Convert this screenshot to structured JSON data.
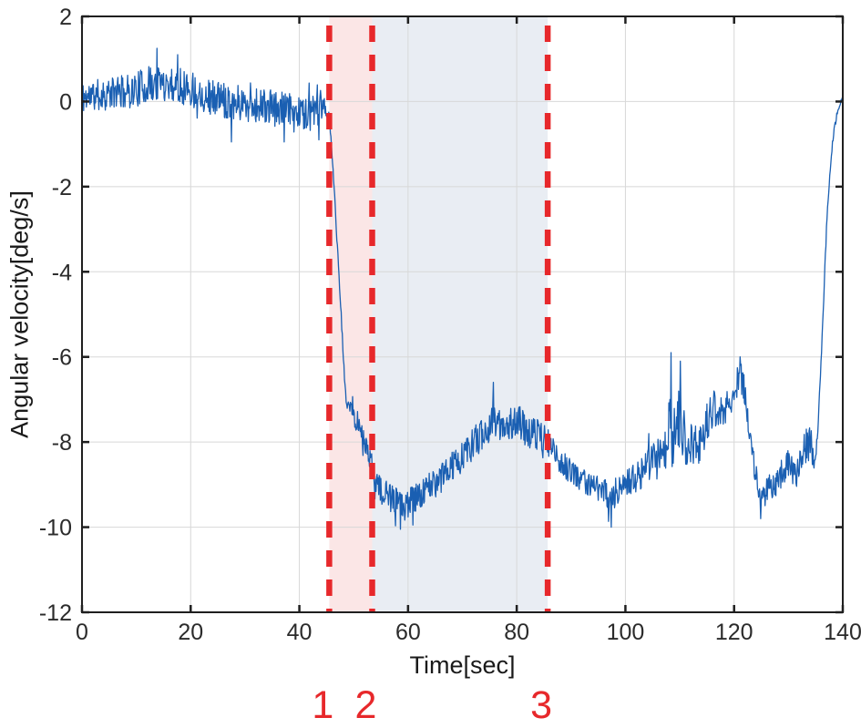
{
  "chart_data": {
    "type": "line",
    "title": "",
    "xlabel": "Time[sec]",
    "ylabel": "Angular velocity[deg/s]",
    "xlim": [
      0,
      140
    ],
    "ylim": [
      -12,
      2
    ],
    "xticks": [
      0,
      20,
      40,
      60,
      80,
      100,
      120,
      140
    ],
    "yticks": [
      2,
      0,
      -2,
      -4,
      -6,
      -8,
      -10,
      -12
    ],
    "grid": true,
    "legend": false,
    "colors": {
      "line": "#1a5fb2",
      "marker_red": "#e7282b",
      "region_pink": "#fbe6e6",
      "region_bluegray": "#e9edf3",
      "grid": "#d8d8d8",
      "axis": "#1f1f1f",
      "background": "#ffffff"
    },
    "series": [
      {
        "name": "angular velocity",
        "color": "#1a5fb2",
        "keypoints_t_mean_noise": [
          [
            0,
            0.1,
            0.38
          ],
          [
            3,
            0.15,
            0.38
          ],
          [
            6,
            0.2,
            0.38
          ],
          [
            9,
            0.25,
            0.4
          ],
          [
            12,
            0.38,
            0.44
          ],
          [
            15,
            0.45,
            0.44
          ],
          [
            18,
            0.38,
            0.44
          ],
          [
            21,
            0.25,
            0.42
          ],
          [
            24,
            0.1,
            0.42
          ],
          [
            27,
            0.02,
            0.42
          ],
          [
            30,
            -0.05,
            0.42
          ],
          [
            33,
            -0.1,
            0.42
          ],
          [
            36,
            -0.18,
            0.42
          ],
          [
            39,
            -0.22,
            0.4
          ],
          [
            42,
            -0.28,
            0.4
          ],
          [
            44,
            -0.2,
            0.36
          ],
          [
            45.4,
            -0.25,
            0.22
          ],
          [
            45.8,
            -0.9,
            0.1
          ],
          [
            46.4,
            -2.0,
            0.08
          ],
          [
            46.9,
            -3.2,
            0.1
          ],
          [
            47.3,
            -4.1,
            0.1
          ],
          [
            47.8,
            -5.3,
            0.12
          ],
          [
            48.3,
            -6.5,
            0.12
          ],
          [
            48.8,
            -7.25,
            0.15
          ],
          [
            49.5,
            -7.05,
            0.18
          ],
          [
            50.3,
            -7.55,
            0.2
          ],
          [
            51.1,
            -7.65,
            0.22
          ],
          [
            51.9,
            -7.95,
            0.25
          ],
          [
            52.6,
            -8.25,
            0.28
          ],
          [
            53.3,
            -8.55,
            0.3
          ],
          [
            54.2,
            -8.9,
            0.3
          ],
          [
            55.2,
            -9.25,
            0.35
          ],
          [
            56.5,
            -9.3,
            0.38
          ],
          [
            58,
            -9.45,
            0.35
          ],
          [
            59.2,
            -9.5,
            0.35
          ],
          [
            60.5,
            -9.4,
            0.36
          ],
          [
            62,
            -9.25,
            0.35
          ],
          [
            64,
            -9.05,
            0.35
          ],
          [
            66,
            -8.85,
            0.35
          ],
          [
            68,
            -8.6,
            0.35
          ],
          [
            70,
            -8.35,
            0.36
          ],
          [
            72,
            -8.05,
            0.38
          ],
          [
            74,
            -7.75,
            0.4
          ],
          [
            75.7,
            -7.5,
            0.42
          ],
          [
            77,
            -7.65,
            0.38
          ],
          [
            78.5,
            -7.55,
            0.4
          ],
          [
            80,
            -7.5,
            0.42
          ],
          [
            81.5,
            -7.7,
            0.4
          ],
          [
            83,
            -7.8,
            0.38
          ],
          [
            84.5,
            -7.85,
            0.36
          ],
          [
            85.7,
            -8.0,
            0.35
          ],
          [
            87.5,
            -8.4,
            0.32
          ],
          [
            89.5,
            -8.65,
            0.3
          ],
          [
            91.5,
            -8.85,
            0.3
          ],
          [
            93.5,
            -9.0,
            0.3
          ],
          [
            95.5,
            -9.1,
            0.32
          ],
          [
            97.5,
            -9.3,
            0.35
          ],
          [
            99,
            -9.05,
            0.32
          ],
          [
            101,
            -8.9,
            0.35
          ],
          [
            103,
            -8.75,
            0.4
          ],
          [
            105,
            -8.5,
            0.45
          ],
          [
            106.5,
            -8.25,
            0.6
          ],
          [
            108,
            -7.7,
            1.0
          ],
          [
            109.2,
            -7.95,
            0.9
          ],
          [
            110.2,
            -7.55,
            1.0
          ],
          [
            111.2,
            -8.0,
            0.65
          ],
          [
            112.5,
            -8.1,
            0.5
          ],
          [
            114,
            -7.95,
            0.5
          ],
          [
            115.3,
            -7.45,
            0.5
          ],
          [
            116.3,
            -7.2,
            0.45
          ],
          [
            117.3,
            -7.55,
            0.42
          ],
          [
            118.3,
            -7.35,
            0.4
          ],
          [
            119.3,
            -7.0,
            0.4
          ],
          [
            120.2,
            -6.75,
            0.4
          ],
          [
            121,
            -6.4,
            0.35
          ],
          [
            121.8,
            -6.7,
            0.35
          ],
          [
            122.6,
            -7.5,
            0.32
          ],
          [
            123.4,
            -8.3,
            0.3
          ],
          [
            124.2,
            -8.95,
            0.3
          ],
          [
            125.1,
            -9.35,
            0.3
          ],
          [
            126.2,
            -9.1,
            0.32
          ],
          [
            127.5,
            -9.05,
            0.35
          ],
          [
            129,
            -8.7,
            0.35
          ],
          [
            130,
            -8.45,
            0.35
          ],
          [
            131,
            -8.8,
            0.35
          ],
          [
            132.2,
            -8.55,
            0.4
          ],
          [
            133.2,
            -8.1,
            0.42
          ],
          [
            134,
            -8.0,
            0.4
          ],
          [
            134.6,
            -8.5,
            0.25
          ],
          [
            135.1,
            -8.2,
            0.15
          ],
          [
            135.5,
            -7.5,
            0.12
          ],
          [
            136,
            -6.1,
            0.1
          ],
          [
            136.5,
            -4.6,
            0.1
          ],
          [
            137,
            -3.0,
            0.1
          ],
          [
            137.5,
            -1.9,
            0.1
          ],
          [
            138,
            -1.1,
            0.09
          ],
          [
            138.5,
            -0.6,
            0.08
          ],
          [
            139,
            -0.25,
            0.07
          ],
          [
            139.5,
            -0.05,
            0.05
          ],
          [
            140,
            0.1,
            0.04
          ]
        ],
        "spikes": [
          [
            13.8,
            1.25
          ],
          [
            17.6,
            1.1
          ],
          [
            27.5,
            -0.95
          ],
          [
            37.2,
            -0.95
          ],
          [
            43.6,
            -0.9
          ],
          [
            58.6,
            -10.05
          ],
          [
            60.9,
            -9.95
          ],
          [
            75.7,
            -6.6
          ],
          [
            97.4,
            -10.0
          ],
          [
            108.4,
            -5.9
          ],
          [
            110.1,
            -6.1
          ],
          [
            121.1,
            -6.0
          ],
          [
            124.9,
            -9.8
          ]
        ]
      }
    ],
    "sample_dt": 0.1,
    "noise_seed": 11,
    "event_markers": [
      {
        "label": "1",
        "t": 45.5
      },
      {
        "label": "2",
        "t": 53.4
      },
      {
        "label": "3",
        "t": 85.7
      }
    ],
    "shaded_regions": [
      {
        "from": 45.5,
        "to": 53.4,
        "color": "#fbe6e6"
      },
      {
        "from": 53.4,
        "to": 85.7,
        "color": "#e9edf3"
      }
    ]
  }
}
